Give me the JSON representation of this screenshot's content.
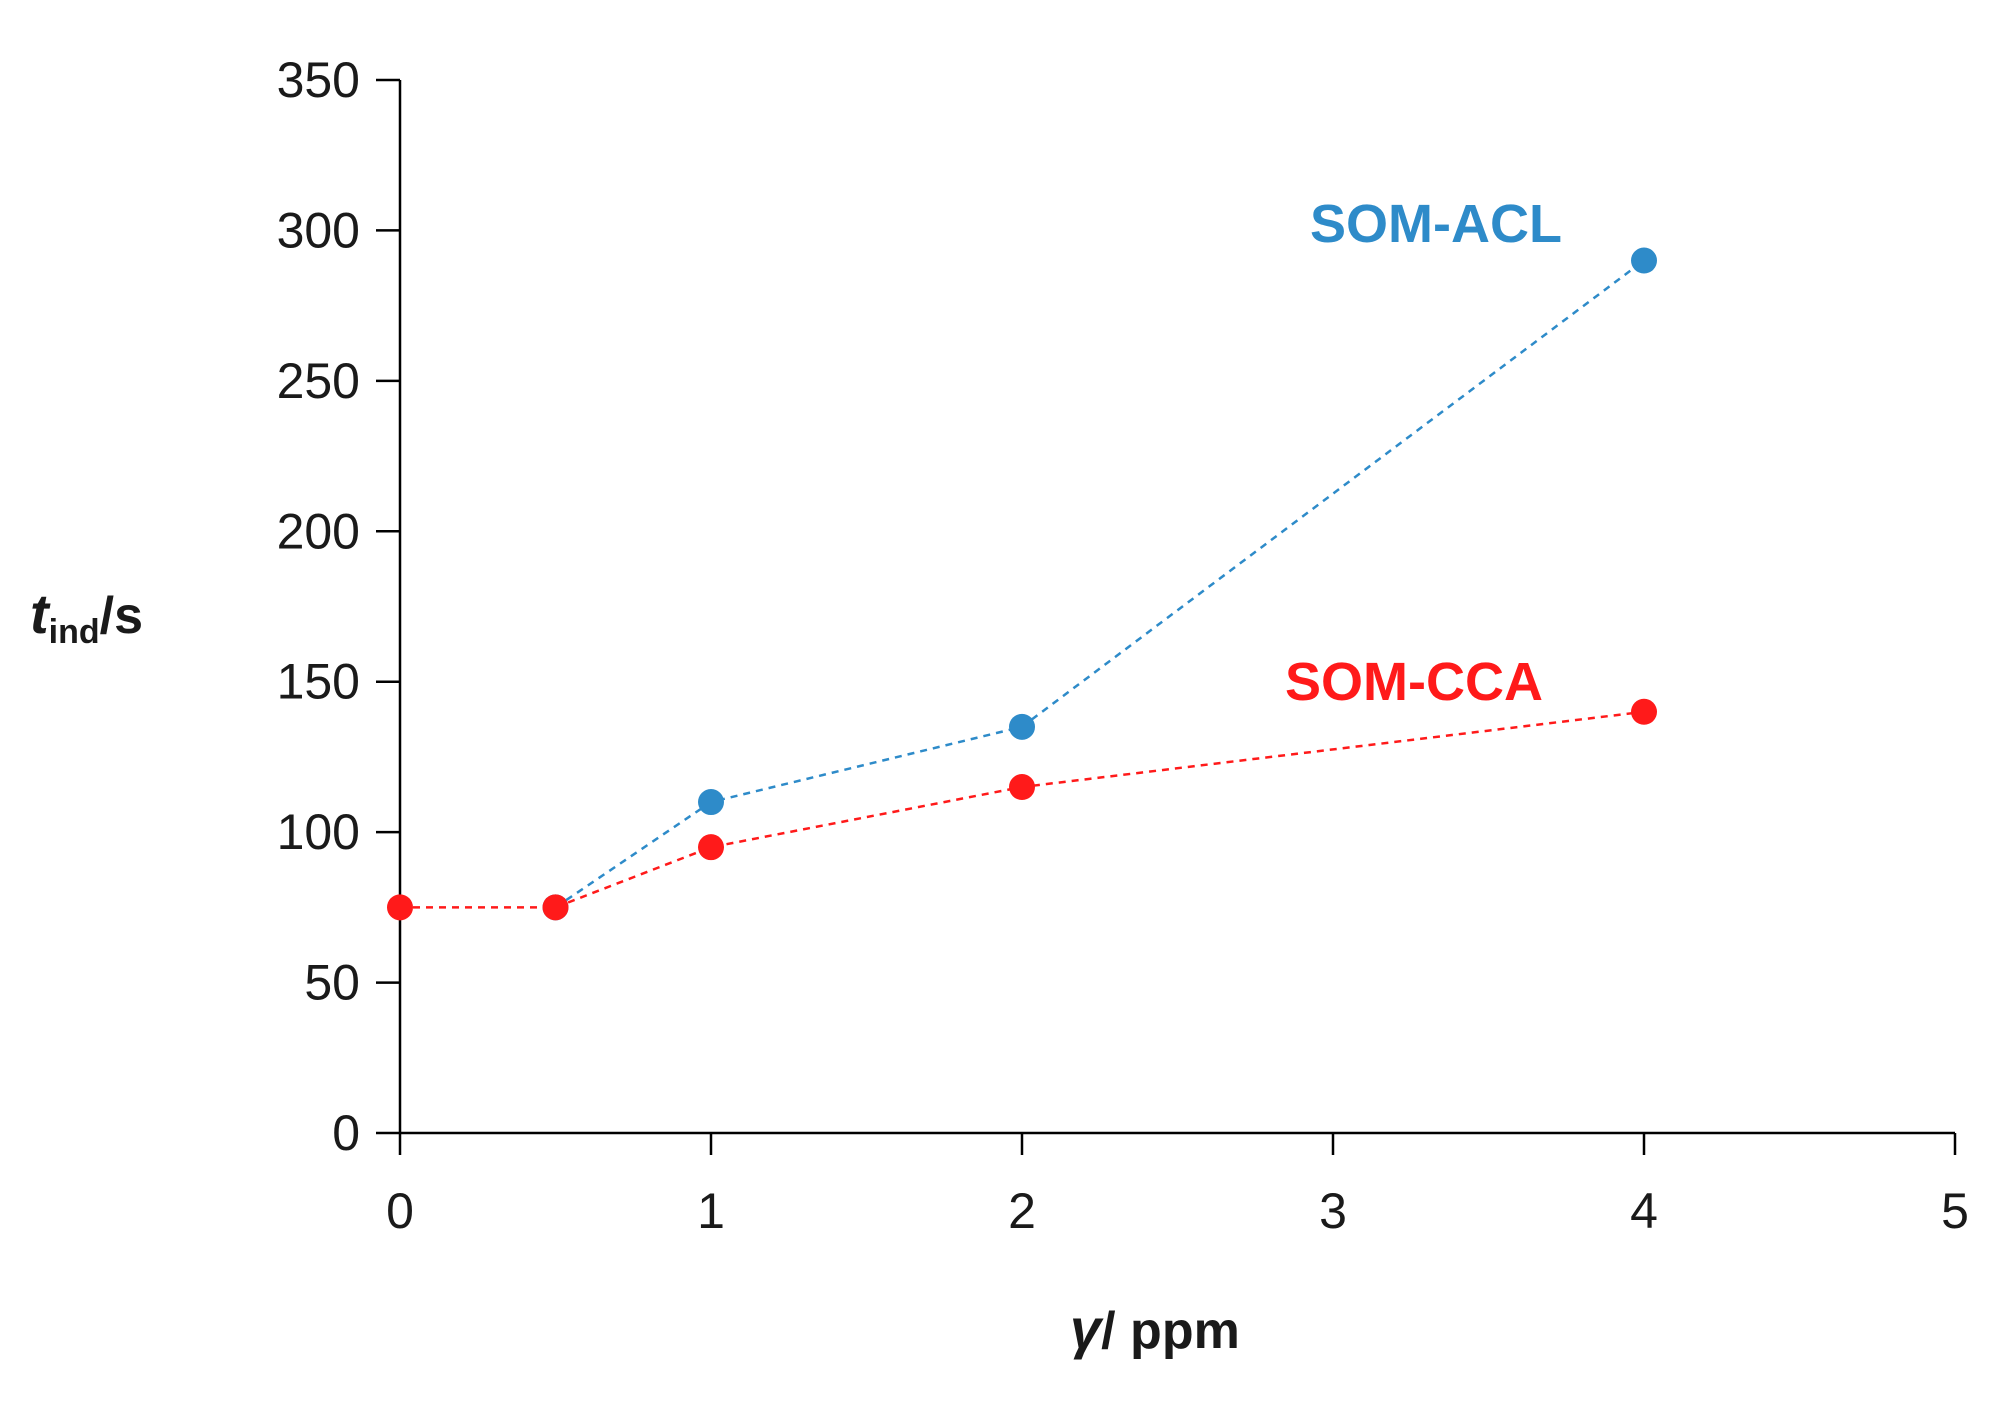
{
  "chart_data": {
    "type": "line",
    "xlabel": {
      "symbol": "γ",
      "unit": "/ ppm"
    },
    "ylabel": {
      "symbol": "t",
      "subscript": "ind",
      "unit": "/s"
    },
    "xlim": [
      0,
      5
    ],
    "ylim": [
      0,
      350
    ],
    "x_ticks": [
      0,
      1,
      2,
      3,
      4,
      5
    ],
    "y_ticks": [
      0,
      50,
      100,
      150,
      200,
      250,
      300,
      350
    ],
    "grid": false,
    "series": [
      {
        "name": "SOM-ACL",
        "color": "#2e8bc9",
        "line_style": "dashed",
        "x": [
          0.5,
          1,
          2,
          4
        ],
        "y": [
          75,
          110,
          135,
          290
        ]
      },
      {
        "name": "SOM-CCA",
        "color": "#ff1a1a",
        "line_style": "dashed",
        "x": [
          0,
          0.5,
          1,
          2,
          4
        ],
        "y": [
          75,
          75,
          95,
          115,
          140
        ]
      }
    ]
  }
}
